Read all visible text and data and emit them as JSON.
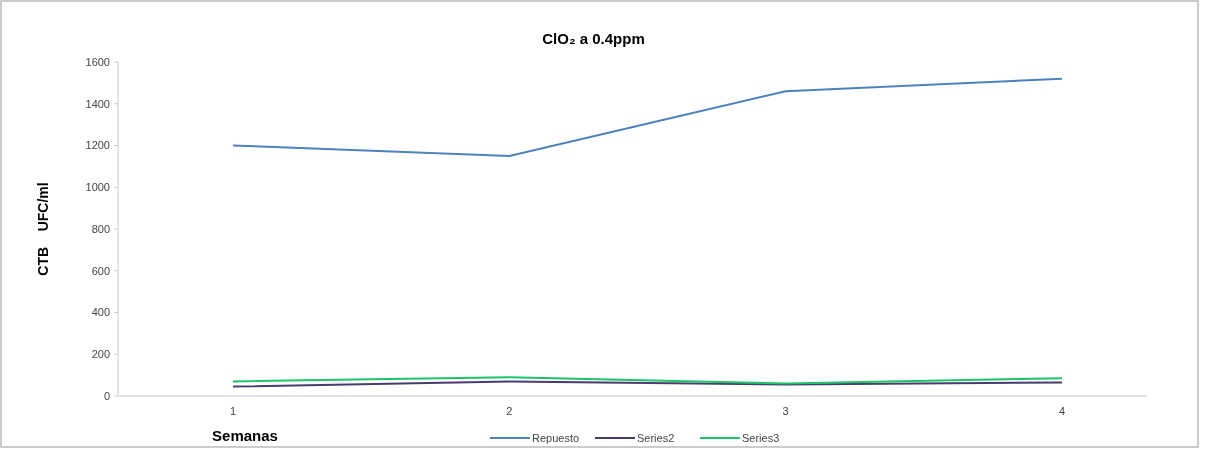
{
  "chart_data": {
    "type": "line",
    "title": "ClO₂ a 0.4ppm",
    "xlabel": "Semanas",
    "ylabel": "CTB    UFC/ml",
    "categories": [
      "1",
      "2",
      "3",
      "4"
    ],
    "series": [
      {
        "name": "Repuesto",
        "color": "#4f81bd",
        "values": [
          1200,
          1150,
          1460,
          1520
        ]
      },
      {
        "name": "Series2",
        "color": "#4b3c6e",
        "values": [
          45,
          70,
          55,
          65
        ]
      },
      {
        "name": "Series3",
        "color": "#1fc46a",
        "values": [
          70,
          90,
          60,
          85
        ]
      }
    ],
    "ylim": [
      0,
      1600
    ],
    "yticks": [
      0,
      200,
      400,
      600,
      800,
      1000,
      1200,
      1400,
      1600
    ],
    "grid": false,
    "legend": "bottom",
    "marker": "none",
    "line_style": "solid"
  }
}
